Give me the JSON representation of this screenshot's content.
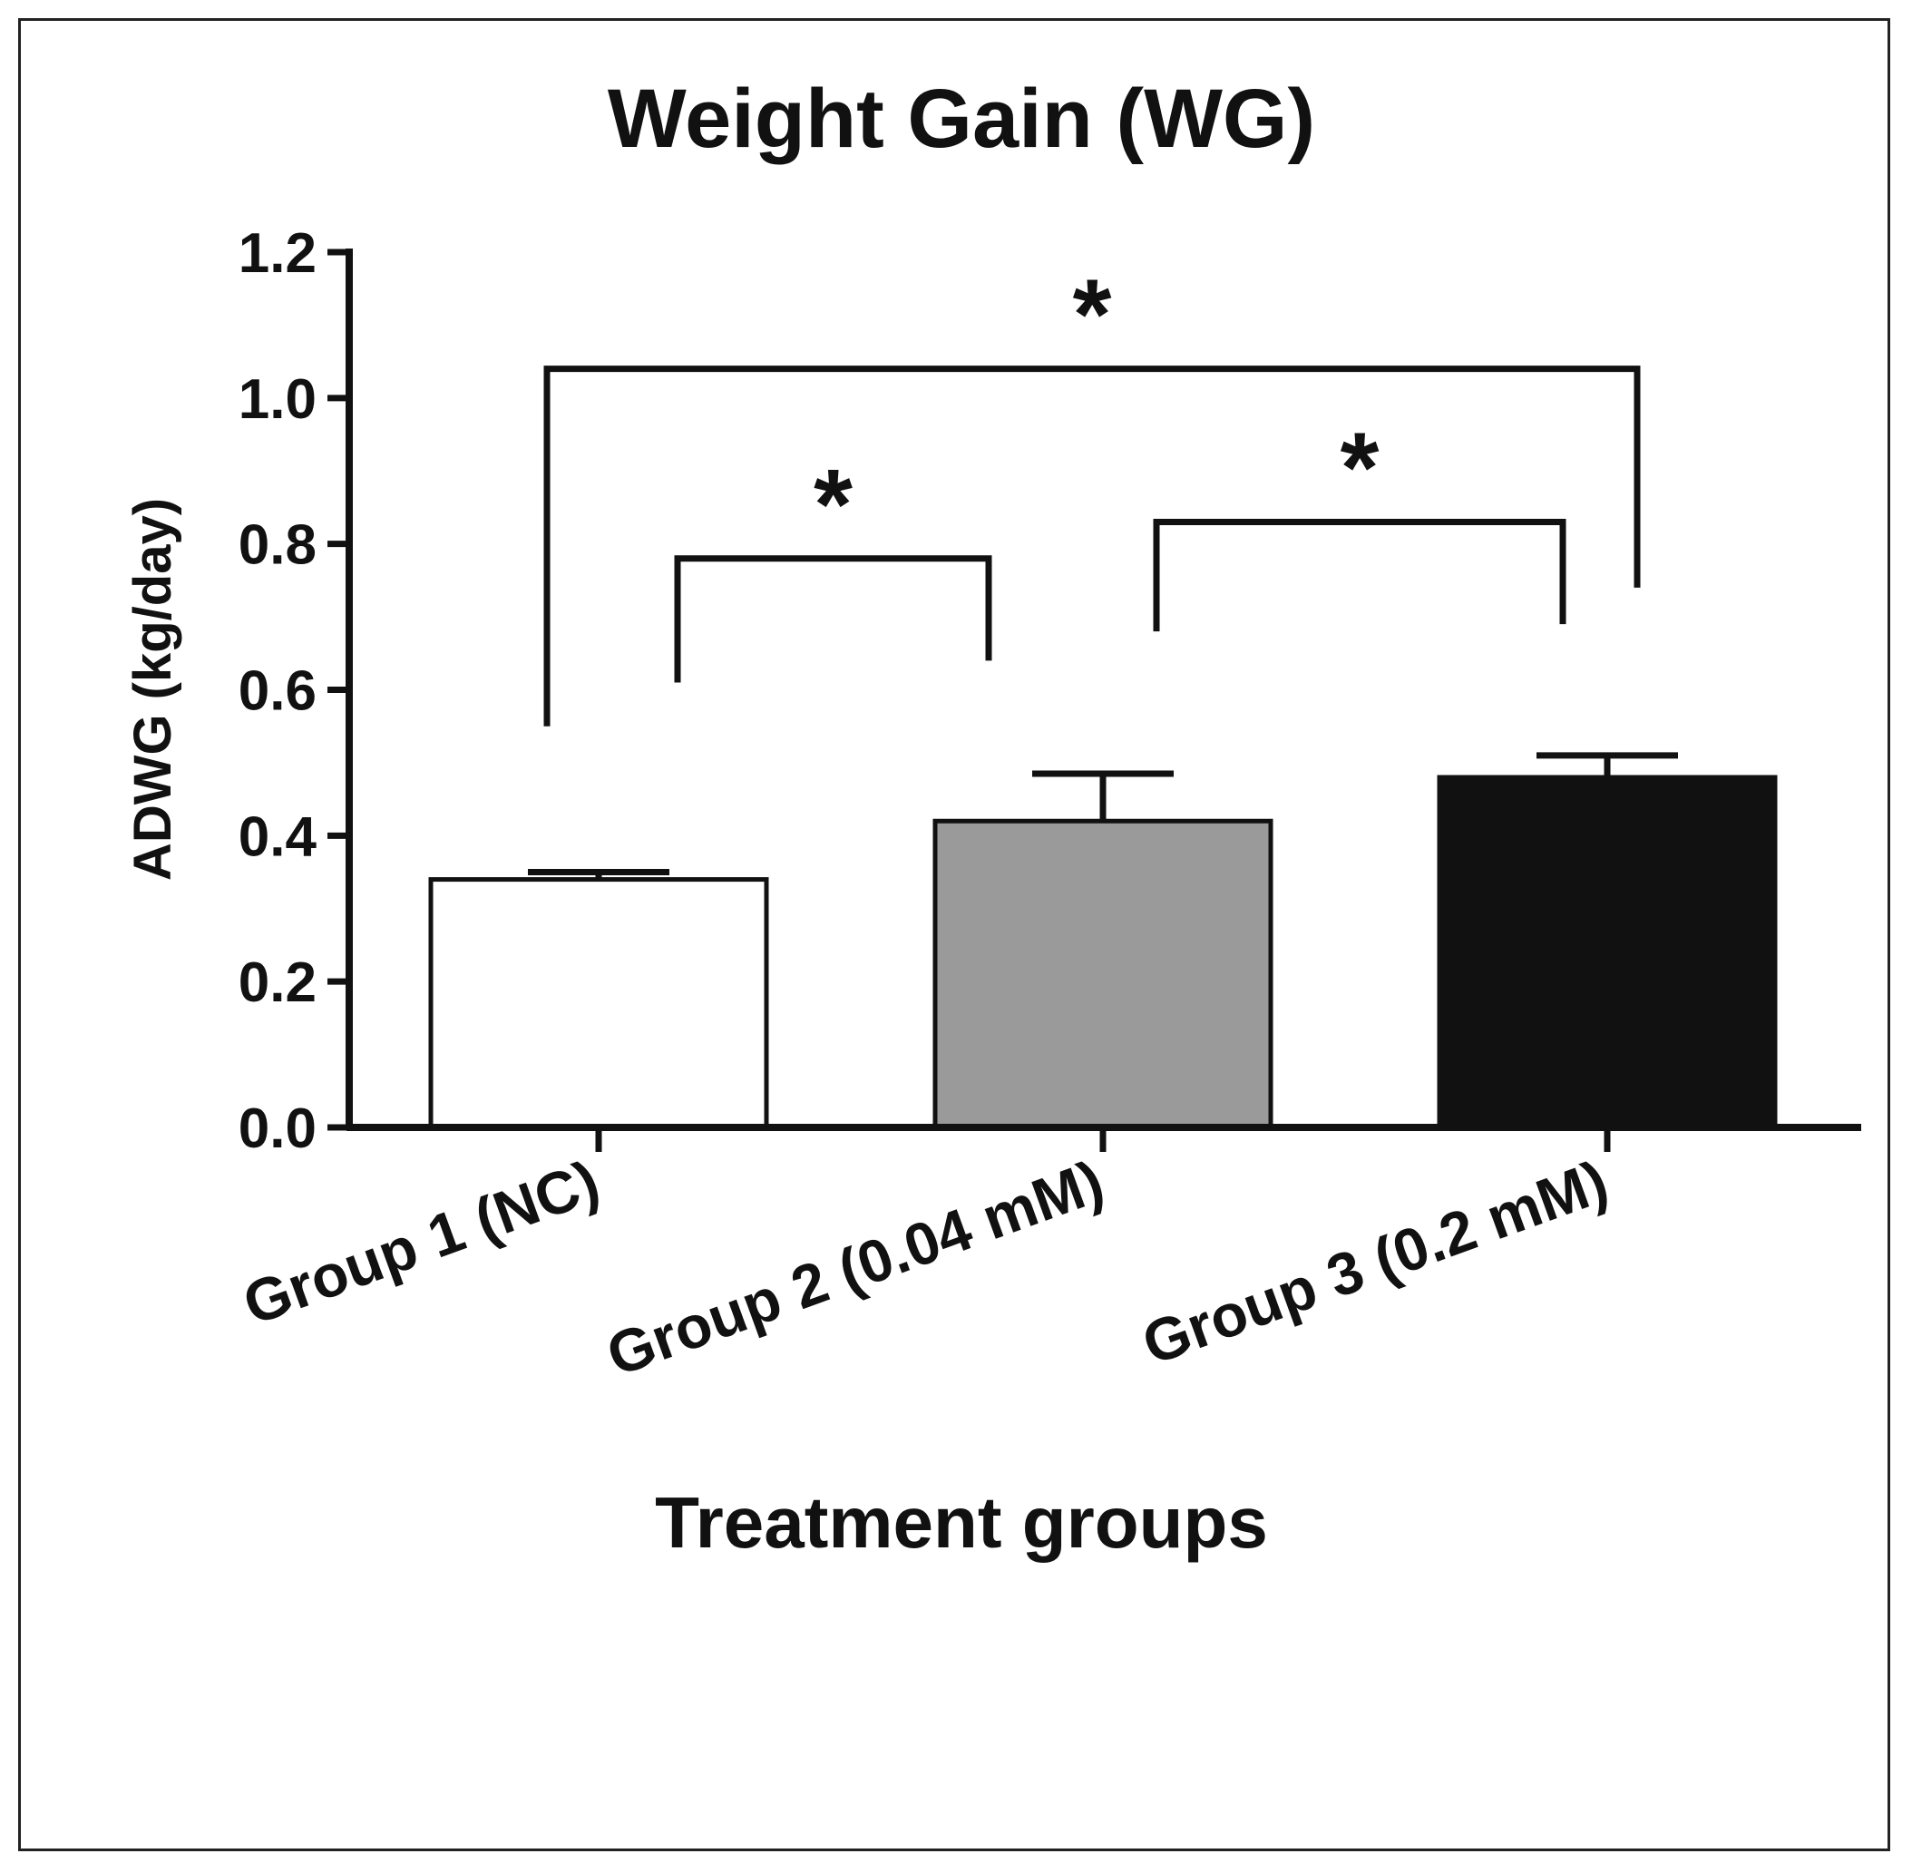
{
  "chart_data": {
    "type": "bar",
    "title": "Weight Gain (WG)",
    "xlabel": "Treatment groups",
    "ylabel": "ADWG (kg/day)",
    "ylim": [
      0,
      1.2
    ],
    "yticks": [
      "0.0",
      "0.2",
      "0.4",
      "0.6",
      "0.8",
      "1.0",
      "1.2"
    ],
    "categories": [
      "Group 1 (NC)",
      "Group 2 (0.04 mM)",
      "Group 3 (0.2 mM)"
    ],
    "values": [
      0.34,
      0.42,
      0.48
    ],
    "errors": [
      0.01,
      0.065,
      0.03
    ],
    "bar_colors": [
      "#ffffff",
      "#9a9a9a",
      "#111111"
    ],
    "significance": [
      {
        "from": 0,
        "to": 1,
        "label": "*",
        "y": 0.78,
        "left_drop": 0.61,
        "right_drop": 0.64
      },
      {
        "from": 1,
        "to": 2,
        "label": "*",
        "y": 0.83,
        "left_drop": 0.68,
        "right_drop": 0.69
      },
      {
        "from": 0,
        "to": 2,
        "label": "*",
        "y": 1.04,
        "left_drop": 0.55,
        "right_drop": 0.74
      }
    ]
  }
}
